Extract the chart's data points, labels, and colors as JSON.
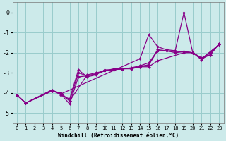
{
  "xlabel": "Windchill (Refroidissement éolien,°C)",
  "background_color": "#cceaea",
  "grid_color": "#99cccc",
  "line_color": "#880088",
  "xlim": [
    -0.5,
    23.5
  ],
  "ylim": [
    -5.5,
    0.5
  ],
  "yticks": [
    0,
    -1,
    -2,
    -3,
    -4,
    -5
  ],
  "xticks": [
    0,
    1,
    2,
    3,
    4,
    5,
    6,
    7,
    8,
    9,
    10,
    11,
    12,
    13,
    14,
    15,
    16,
    17,
    18,
    19,
    20,
    21,
    22,
    23
  ],
  "series": [
    {
      "x": [
        0,
        1,
        4,
        5,
        6,
        7,
        8,
        9,
        10,
        11,
        12,
        13,
        14,
        15,
        16,
        17,
        18,
        19,
        20,
        21,
        22,
        23
      ],
      "y": [
        -4.1,
        -4.5,
        -3.85,
        -4.05,
        -4.55,
        -3.2,
        -3.15,
        -3.05,
        -2.9,
        -2.85,
        -2.8,
        -2.78,
        -2.68,
        -2.6,
        -1.85,
        -1.9,
        -2.0,
        -1.95,
        -2.0,
        -2.3,
        -2.1,
        -1.55
      ]
    },
    {
      "x": [
        0,
        1,
        4,
        5,
        6,
        7,
        8,
        9,
        10,
        11,
        12,
        13,
        14,
        15,
        16,
        19,
        20,
        21,
        22,
        23
      ],
      "y": [
        -4.1,
        -4.5,
        -3.85,
        -4.1,
        -4.3,
        -2.85,
        -3.2,
        -3.1,
        -2.85,
        -2.85,
        -2.8,
        -2.75,
        -2.65,
        -2.5,
        -1.9,
        -1.95,
        -2.0,
        -2.35,
        -2.0,
        -1.6
      ]
    },
    {
      "x": [
        0,
        1,
        4,
        5,
        6,
        8,
        9,
        10,
        11,
        12,
        13,
        14,
        15,
        16,
        19,
        20,
        21,
        23
      ],
      "y": [
        -4.1,
        -4.5,
        -3.9,
        -4.0,
        -4.4,
        -3.1,
        -3.0,
        -2.9,
        -2.8,
        -2.8,
        -2.8,
        -2.7,
        -2.7,
        -2.4,
        -2.0,
        -2.0,
        -2.3,
        -1.6
      ]
    },
    {
      "x": [
        0,
        1,
        4,
        5,
        14,
        15,
        16,
        17,
        18,
        19,
        20,
        21,
        22,
        23
      ],
      "y": [
        -4.1,
        -4.5,
        -3.9,
        -4.05,
        -2.3,
        -1.1,
        -1.7,
        -1.85,
        -1.9,
        0.0,
        -2.0,
        -2.25,
        -2.1,
        -1.55
      ]
    },
    {
      "x": [
        1,
        4,
        5,
        6,
        7,
        8,
        9,
        10,
        11,
        12,
        13,
        14,
        15,
        16,
        19,
        20,
        21,
        23
      ],
      "y": [
        -4.5,
        -3.9,
        -4.0,
        -4.4,
        -3.0,
        -3.15,
        -3.05,
        -2.9,
        -2.85,
        -2.8,
        -2.78,
        -2.72,
        -2.6,
        -1.9,
        -1.95,
        -2.0,
        -2.3,
        -1.6
      ]
    }
  ]
}
